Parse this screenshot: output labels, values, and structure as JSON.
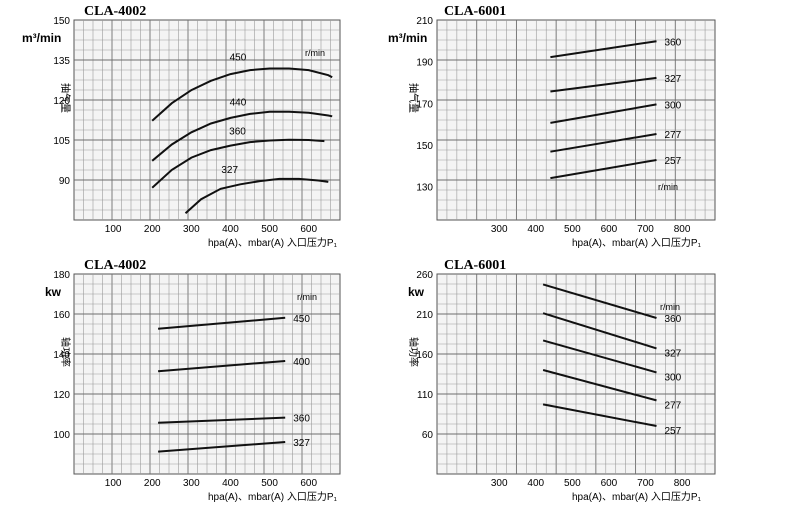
{
  "chart_data": [
    {
      "type": "line",
      "title": "CLA-4002",
      "ylabel": "抽气量",
      "y_unit": "m³/min",
      "xlabel": "hpa(A)、mbar(A)  入口压力P₁",
      "series_unit": "r/min",
      "xlim": [
        0,
        680
      ],
      "ylim": [
        75,
        150
      ],
      "x_ticks": [
        100,
        200,
        300,
        400,
        500,
        600
      ],
      "y_ticks": [
        90,
        105,
        120,
        135,
        150
      ],
      "grid": true,
      "series": [
        {
          "name": "450",
          "points": [
            [
              200,
              112.2
            ],
            [
              250,
              118.8
            ],
            [
              300,
              123.7
            ],
            [
              350,
              127.2
            ],
            [
              400,
              129.7
            ],
            [
              450,
              131.2
            ],
            [
              500,
              131.8
            ],
            [
              550,
              131.8
            ],
            [
              600,
              131.2
            ],
            [
              650,
              129.3
            ],
            [
              660,
              128.5
            ]
          ]
        },
        {
          "name": "440",
          "points": [
            [
              200,
              97.2
            ],
            [
              250,
              103.3
            ],
            [
              300,
              107.9
            ],
            [
              350,
              111.2
            ],
            [
              400,
              113.3
            ],
            [
              450,
              114.8
            ],
            [
              500,
              115.6
            ],
            [
              550,
              115.6
            ],
            [
              600,
              115.2
            ],
            [
              650,
              114.2
            ],
            [
              660,
              113.9
            ]
          ]
        },
        {
          "name": "360",
          "points": [
            [
              200,
              87.1
            ],
            [
              250,
              93.8
            ],
            [
              300,
              98.4
            ],
            [
              350,
              101.2
            ],
            [
              400,
              102.9
            ],
            [
              450,
              104.2
            ],
            [
              500,
              104.8
            ],
            [
              550,
              105.1
            ],
            [
              600,
              105.0
            ],
            [
              640,
              104.6
            ]
          ]
        },
        {
          "name": "327",
          "points": [
            [
              285,
              77.5
            ],
            [
              325,
              82.8
            ],
            [
              375,
              86.7
            ],
            [
              425,
              88.4
            ],
            [
              475,
              89.6
            ],
            [
              525,
              90.4
            ],
            [
              575,
              90.4
            ],
            [
              625,
              89.8
            ],
            [
              650,
              89.3
            ]
          ]
        }
      ]
    },
    {
      "type": "line",
      "title": "CLA-6001",
      "ylabel": "抽气量",
      "y_unit": "m³/min",
      "xlabel": "hpa(A)、mbar(A)  入口压力P₁",
      "series_unit": "r/min",
      "xlim": [
        130,
        890
      ],
      "ylim": [
        114,
        210
      ],
      "x_ticks": [
        300,
        400,
        500,
        600,
        700,
        800
      ],
      "y_ticks": [
        130,
        150,
        170,
        190,
        210
      ],
      "grid": true,
      "series": [
        {
          "name": "360",
          "points": [
            [
              440,
              192.2
            ],
            [
              730,
              199.8
            ]
          ]
        },
        {
          "name": "327",
          "points": [
            [
              440,
              175.7
            ],
            [
              730,
              182.2
            ]
          ]
        },
        {
          "name": "300",
          "points": [
            [
              440,
              160.6
            ],
            [
              730,
              169.5
            ]
          ]
        },
        {
          "name": "277",
          "points": [
            [
              440,
              146.8
            ],
            [
              730,
              155.3
            ]
          ]
        },
        {
          "name": "257",
          "points": [
            [
              440,
              134.1
            ],
            [
              730,
              142.8
            ]
          ]
        }
      ]
    },
    {
      "type": "line",
      "title": "CLA-4002",
      "ylabel": "轴功率",
      "y_unit": "kw",
      "xlabel": "hpa(A)、mbar(A)  入口压力P₁",
      "series_unit": "r/min",
      "xlim": [
        0,
        680
      ],
      "ylim": [
        80,
        180
      ],
      "x_ticks": [
        100,
        200,
        300,
        400,
        500,
        600
      ],
      "y_ticks": [
        100,
        120,
        140,
        160,
        180
      ],
      "grid": true,
      "series": [
        {
          "name": "450",
          "points": [
            [
              215,
              152.6
            ],
            [
              540,
              158.1
            ]
          ]
        },
        {
          "name": "400",
          "points": [
            [
              215,
              131.4
            ],
            [
              540,
              136.5
            ]
          ]
        },
        {
          "name": "360",
          "points": [
            [
              215,
              105.6
            ],
            [
              540,
              108.2
            ]
          ]
        },
        {
          "name": "327",
          "points": [
            [
              215,
              91.2
            ],
            [
              540,
              96.0
            ]
          ]
        }
      ]
    },
    {
      "type": "line",
      "title": "CLA-6001",
      "ylabel": "轴功率",
      "y_unit": "kw",
      "xlabel": "hpa(A)、mbar(A)  入口压力P₁",
      "series_unit": "r/min",
      "xlim": [
        130,
        890
      ],
      "ylim": [
        10,
        260
      ],
      "x_ticks": [
        300,
        400,
        500,
        600,
        700,
        800
      ],
      "y_ticks": [
        60,
        110,
        160,
        210,
        260
      ],
      "grid": true,
      "series": [
        {
          "name": "360",
          "points": [
            [
              420,
              247
            ],
            [
              730,
              205
            ]
          ]
        },
        {
          "name": "327",
          "points": [
            [
              420,
              211
            ],
            [
              730,
              167
            ]
          ]
        },
        {
          "name": "300",
          "points": [
            [
              420,
              177
            ],
            [
              730,
              137
            ]
          ]
        },
        {
          "name": "277",
          "points": [
            [
              420,
              140
            ],
            [
              730,
              102
            ]
          ]
        },
        {
          "name": "257",
          "points": [
            [
              420,
              97
            ],
            [
              730,
              70
            ]
          ]
        }
      ]
    }
  ]
}
